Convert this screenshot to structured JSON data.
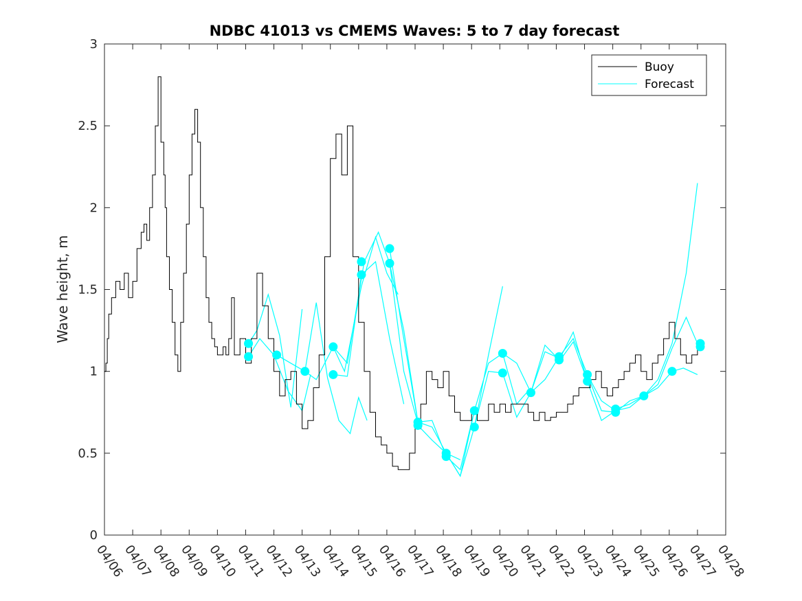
{
  "chart_data": {
    "type": "line",
    "title": "NDBC 41013 vs CMEMS Waves: 5 to 7 day forecast",
    "xlabel": "",
    "ylabel": "Wave height, m",
    "ylim": [
      0,
      3
    ],
    "xlim": [
      "04/06",
      "04/28"
    ],
    "yticks": [
      "0",
      "0.5",
      "1",
      "1.5",
      "2",
      "2.5",
      "3"
    ],
    "xticks": [
      "04/06",
      "04/07",
      "04/08",
      "04/09",
      "04/10",
      "04/11",
      "04/12",
      "04/13",
      "04/14",
      "04/15",
      "04/16",
      "04/17",
      "04/18",
      "04/19",
      "04/20",
      "04/21",
      "04/22",
      "04/23",
      "04/24",
      "04/25",
      "04/26",
      "04/27",
      "04/28"
    ],
    "grid": false,
    "legend": {
      "position": "top-right",
      "entries": [
        "Buoy",
        "Forecast"
      ]
    },
    "colors": {
      "buoy": "#000000",
      "forecast": "#00ffff"
    },
    "series": [
      {
        "name": "Buoy",
        "x_days": [
          0,
          0.05,
          0.1,
          0.15,
          0.25,
          0.4,
          0.55,
          0.7,
          0.85,
          1.0,
          1.15,
          1.3,
          1.4,
          1.5,
          1.6,
          1.7,
          1.8,
          1.9,
          2.0,
          2.05,
          2.1,
          2.15,
          2.2,
          2.3,
          2.4,
          2.5,
          2.6,
          2.7,
          2.8,
          2.9,
          3.0,
          3.1,
          3.2,
          3.3,
          3.4,
          3.5,
          3.6,
          3.7,
          3.8,
          3.9,
          4.0,
          4.1,
          4.2,
          4.3,
          4.4,
          4.5,
          4.6,
          4.8,
          5.0,
          5.2,
          5.4,
          5.6,
          5.8,
          6.0,
          6.2,
          6.4,
          6.6,
          6.8,
          7.0,
          7.2,
          7.4,
          7.6,
          7.8,
          8.0,
          8.2,
          8.4,
          8.6,
          8.8,
          9.0,
          9.2,
          9.4,
          9.6,
          9.8,
          10.0,
          10.2,
          10.4,
          10.6,
          10.8,
          11.0,
          11.2,
          11.4,
          11.6,
          11.8,
          12.0,
          12.2,
          12.4,
          12.6,
          12.8,
          13.0,
          13.2,
          13.4,
          13.6,
          13.8,
          14.0,
          14.2,
          14.4,
          14.6,
          14.8,
          15.0,
          15.2,
          15.4,
          15.6,
          15.8,
          16.0,
          16.2,
          16.4,
          16.6,
          16.8,
          17.0,
          17.2,
          17.4,
          17.6,
          17.8,
          18.0,
          18.2,
          18.4,
          18.6,
          18.8,
          19.0,
          19.2,
          19.4,
          19.6,
          19.8,
          20.0,
          20.2,
          20.4,
          20.6,
          20.8,
          21.0
        ],
        "values": [
          1.0,
          1.05,
          1.2,
          1.35,
          1.45,
          1.55,
          1.5,
          1.6,
          1.45,
          1.55,
          1.75,
          1.85,
          1.9,
          1.8,
          2.0,
          2.2,
          2.5,
          2.8,
          2.4,
          2.4,
          2.2,
          2.0,
          1.7,
          1.5,
          1.3,
          1.1,
          1.0,
          1.3,
          1.6,
          1.9,
          2.2,
          2.45,
          2.6,
          2.4,
          2.0,
          1.7,
          1.45,
          1.3,
          1.2,
          1.15,
          1.1,
          1.1,
          1.15,
          1.1,
          1.2,
          1.45,
          1.1,
          1.2,
          1.05,
          1.2,
          1.6,
          1.4,
          1.2,
          1.0,
          0.85,
          0.95,
          1.0,
          0.8,
          0.65,
          0.7,
          0.9,
          1.1,
          1.7,
          2.3,
          2.45,
          2.2,
          2.5,
          1.7,
          1.3,
          1.0,
          0.75,
          0.6,
          0.55,
          0.5,
          0.42,
          0.4,
          0.4,
          0.5,
          0.65,
          0.8,
          1.0,
          0.95,
          0.9,
          1.0,
          0.85,
          0.75,
          0.7,
          0.7,
          0.75,
          0.7,
          0.7,
          0.8,
          0.75,
          0.8,
          0.75,
          0.8,
          0.8,
          0.8,
          0.75,
          0.7,
          0.75,
          0.7,
          0.72,
          0.75,
          0.75,
          0.8,
          0.85,
          0.9,
          0.9,
          0.95,
          1.0,
          0.9,
          0.85,
          0.9,
          0.95,
          1.0,
          1.05,
          1.1,
          1.0,
          0.95,
          1.05,
          1.1,
          1.2,
          1.3,
          1.2,
          1.1,
          1.05,
          1.1,
          1.15
        ]
      },
      {
        "name": "Forecast",
        "segments": [
          {
            "x_days": [
              5.1,
              5.4,
              5.8,
              6.2,
              6.6,
              7.0
            ],
            "values": [
              1.17,
              1.25,
              1.47,
              1.22,
              0.78,
              1.38
            ]
          },
          {
            "x_days": [
              5.1,
              5.5,
              6.0,
              6.5,
              7.0,
              7.3
            ],
            "values": [
              1.09,
              1.2,
              1.1,
              0.88,
              0.76,
              0.98
            ]
          },
          {
            "x_days": [
              6.1,
              6.6,
              7.1,
              7.5,
              7.9,
              8.3,
              8.7,
              9.0,
              9.3
            ],
            "values": [
              1.1,
              1.05,
              1.0,
              1.42,
              0.96,
              0.7,
              0.62,
              0.84,
              0.7
            ]
          },
          {
            "x_days": [
              7.1,
              7.5,
              8.1,
              8.5,
              9.1,
              9.6,
              10.0,
              10.4
            ],
            "values": [
              1.0,
              0.95,
              1.15,
              1.0,
              1.52,
              1.82,
              1.6,
              1.47
            ]
          },
          {
            "x_days": [
              8.1,
              8.6,
              9.1,
              9.6,
              10.1,
              10.6
            ],
            "values": [
              0.98,
              0.97,
              1.59,
              1.67,
              1.2,
              0.8
            ]
          },
          {
            "x_days": [
              8.1,
              8.6,
              9.2,
              9.7,
              10.1,
              10.6,
              11.1
            ],
            "values": [
              1.15,
              1.05,
              1.67,
              1.85,
              1.66,
              1.0,
              0.68
            ]
          },
          {
            "x_days": [
              10.1,
              10.5,
              11.1,
              11.6,
              12.1,
              12.6
            ],
            "values": [
              1.75,
              1.3,
              0.69,
              0.66,
              0.5,
              0.46
            ]
          },
          {
            "x_days": [
              10.1,
              10.6,
              11.1,
              11.6,
              12.1,
              12.6,
              13.1
            ],
            "values": [
              1.66,
              1.25,
              0.69,
              0.7,
              0.48,
              0.4,
              0.76
            ]
          },
          {
            "x_days": [
              11.1,
              11.6,
              12.1,
              12.6,
              13.1,
              13.6,
              14.1
            ],
            "values": [
              0.67,
              0.58,
              0.5,
              0.36,
              0.66,
              1.1,
              1.52
            ]
          },
          {
            "x_days": [
              12.1,
              12.6,
              13.1,
              13.6,
              14.1,
              14.6,
              15.1
            ],
            "values": [
              0.5,
              0.36,
              0.76,
              1.05,
              1.11,
              0.8,
              0.9
            ]
          },
          {
            "x_days": [
              13.1,
              13.6,
              14.1,
              14.6,
              15.1,
              15.6,
              16.1
            ],
            "values": [
              0.66,
              1.0,
              0.99,
              0.72,
              0.87,
              1.12,
              1.08
            ]
          },
          {
            "x_days": [
              14.1,
              14.6,
              15.1,
              15.6,
              16.1,
              16.6,
              17.1
            ],
            "values": [
              1.11,
              1.05,
              0.87,
              1.16,
              1.07,
              1.24,
              0.94
            ]
          },
          {
            "x_days": [
              15.1,
              15.6,
              16.1,
              16.6,
              17.1,
              17.6,
              18.1
            ],
            "values": [
              0.87,
              0.95,
              1.09,
              1.2,
              0.98,
              0.82,
              0.76
            ]
          },
          {
            "x_days": [
              16.1,
              16.6,
              17.1,
              17.6,
              18.1,
              18.6,
              19.1
            ],
            "values": [
              1.06,
              1.18,
              0.94,
              0.7,
              0.76,
              0.78,
              0.85
            ]
          },
          {
            "x_days": [
              17.1,
              17.6,
              18.1,
              18.6,
              19.1,
              19.6,
              20.1
            ],
            "values": [
              0.98,
              0.76,
              0.75,
              0.82,
              0.85,
              0.9,
              1.0
            ]
          },
          {
            "x_days": [
              18.1,
              18.6,
              19.1,
              19.6,
              20.1,
              20.6,
              21.0
            ],
            "values": [
              0.77,
              0.8,
              0.85,
              0.92,
              1.14,
              1.33,
              1.17
            ]
          },
          {
            "x_days": [
              19.1,
              19.6,
              20.1,
              20.6,
              21.0
            ],
            "values": [
              0.85,
              0.95,
              1.17,
              1.6,
              2.15
            ]
          },
          {
            "x_days": [
              20.1,
              20.5,
              21.0
            ],
            "values": [
              1.0,
              1.02,
              0.98
            ]
          }
        ],
        "markers": {
          "x_days": [
            5.1,
            5.1,
            6.1,
            7.1,
            8.1,
            8.1,
            9.1,
            9.1,
            10.1,
            10.1,
            11.1,
            11.1,
            12.1,
            12.1,
            13.1,
            13.1,
            14.1,
            14.1,
            15.1,
            16.1,
            16.1,
            17.1,
            17.1,
            18.1,
            18.1,
            19.1,
            20.1,
            21.1,
            21.1
          ],
          "values": [
            1.17,
            1.09,
            1.1,
            1.0,
            1.15,
            0.98,
            1.67,
            1.59,
            1.75,
            1.66,
            0.69,
            0.67,
            0.5,
            0.48,
            0.76,
            0.66,
            1.11,
            0.99,
            0.87,
            1.09,
            1.07,
            0.98,
            0.94,
            0.77,
            0.75,
            0.85,
            1.0,
            1.17,
            1.15
          ]
        }
      }
    ]
  }
}
